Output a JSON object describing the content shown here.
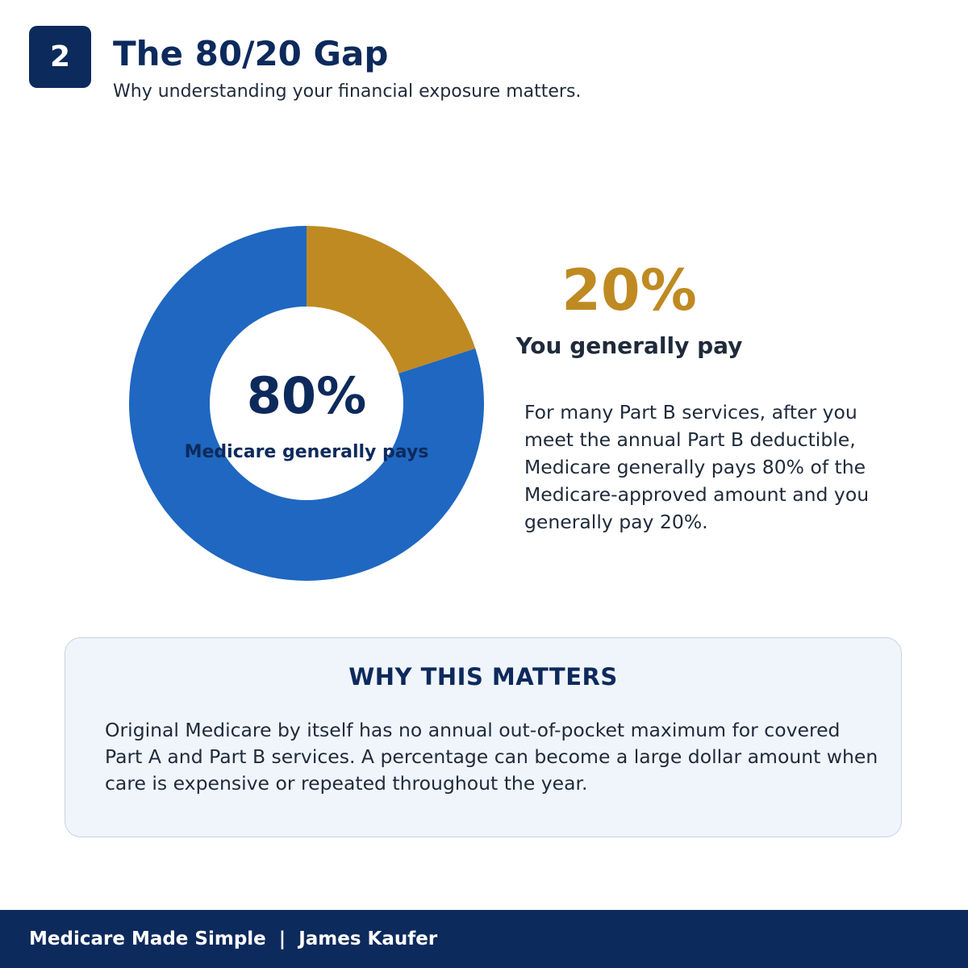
{
  "header": {
    "step_number": "2",
    "title": "The 80/20 Gap",
    "subtitle": "Why understanding your financial exposure matters."
  },
  "chart_data": {
    "type": "pie",
    "categories": [
      "Medicare generally pays",
      "You generally pay"
    ],
    "values": [
      80,
      20
    ],
    "value_labels": [
      "80%",
      "20%"
    ],
    "colors": [
      "#1f67c0",
      "#bf8a22"
    ],
    "donut": true,
    "center_value": "80%",
    "center_label": "Medicare generally pays"
  },
  "callout": {
    "percent": "20%",
    "label": "You generally pay",
    "description": "For many Part B services, after you meet the annual Part B deductible, Medicare generally pays 80% of the Medicare-approved amount and you generally pay 20%."
  },
  "why_box": {
    "title": "WHY THIS MATTERS",
    "text": "Original Medicare by itself has no annual out-of-pocket maximum for covered Part A and Part B services. A percentage can become a large dollar amount when care is expensive or repeated throughout the year."
  },
  "footer": {
    "text": "Medicare Made Simple  |  James Kaufer"
  },
  "colors": {
    "navy": "#0d2a5c",
    "blue": "#1f67c0",
    "gold": "#bf8a22",
    "panel": "#f0f5fc"
  }
}
